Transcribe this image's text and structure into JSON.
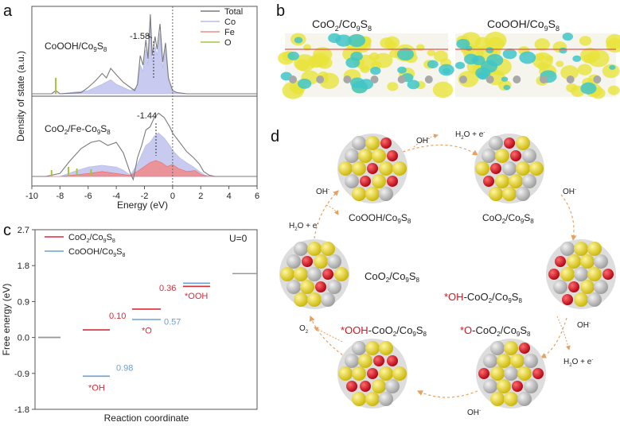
{
  "panel_labels": {
    "a": "a",
    "b": "b",
    "c": "c",
    "d": "d"
  },
  "colors": {
    "total": "#7a7a7a",
    "co": "#b9bde8",
    "fe": "#f08a8a",
    "o": "#a6c33c",
    "dos_fill": "#c8cbef",
    "red_series": "#d92b3a",
    "blue_series": "#6aa0d4",
    "yellow_atom": "#e6d21a",
    "grey_atom": "#b9b9b9",
    "red_atom": "#d3141e",
    "arrow": "#e8a060"
  },
  "chart_data": [
    {
      "type": "line",
      "panel": "a",
      "ylabel": "Density of state (a.u.)",
      "xlabel": "Energy (eV)",
      "xlim": [
        -10,
        6
      ],
      "xticks": [
        "-10",
        "-8",
        "-6",
        "-4",
        "-2",
        "0",
        "2",
        "4",
        "6"
      ],
      "legend": [
        "Total",
        "Co",
        "Fe",
        "O"
      ],
      "top_label": "CoOOH/Co9S8",
      "bottom_label": "CoO2/Fe-Co9S8",
      "top_center": "-1.58",
      "bottom_center": "-1.44",
      "top_total": [
        [
          -10,
          0
        ],
        [
          -8.6,
          0
        ],
        [
          -8.3,
          0.05
        ],
        [
          -8,
          0
        ],
        [
          -6.5,
          0.02
        ],
        [
          -6,
          0.1
        ],
        [
          -5.5,
          0.2
        ],
        [
          -5,
          0.32
        ],
        [
          -4.7,
          0.25
        ],
        [
          -4.4,
          0.4
        ],
        [
          -4,
          0.3
        ],
        [
          -3.5,
          0.18
        ],
        [
          -3,
          0.1
        ],
        [
          -2.7,
          0.05
        ],
        [
          -2.5,
          0.15
        ],
        [
          -2.3,
          0.6
        ],
        [
          -2.1,
          0.45
        ],
        [
          -1.9,
          0.85
        ],
        [
          -1.75,
          0.55
        ],
        [
          -1.58,
          1.25
        ],
        [
          -1.45,
          0.6
        ],
        [
          -1.25,
          0.9
        ],
        [
          -1.1,
          0.7
        ],
        [
          -0.9,
          1.1
        ],
        [
          -0.7,
          0.5
        ],
        [
          -0.5,
          0.8
        ],
        [
          -0.3,
          0.25
        ],
        [
          0,
          0.05
        ],
        [
          0.3,
          0.02
        ],
        [
          1,
          0
        ],
        [
          6,
          0
        ]
      ],
      "top_co": [
        [
          -10,
          0
        ],
        [
          -8,
          0
        ],
        [
          -6,
          0.05
        ],
        [
          -5,
          0.15
        ],
        [
          -4.4,
          0.22
        ],
        [
          -4,
          0.15
        ],
        [
          -3,
          0.05
        ],
        [
          -2.5,
          0.1
        ],
        [
          -2.3,
          0.45
        ],
        [
          -2.1,
          0.35
        ],
        [
          -1.9,
          0.7
        ],
        [
          -1.75,
          0.45
        ],
        [
          -1.58,
          1.1
        ],
        [
          -1.45,
          0.5
        ],
        [
          -1.25,
          0.75
        ],
        [
          -1.1,
          0.6
        ],
        [
          -0.9,
          0.95
        ],
        [
          -0.7,
          0.4
        ],
        [
          -0.5,
          0.7
        ],
        [
          -0.3,
          0.2
        ],
        [
          0,
          0.03
        ],
        [
          1,
          0
        ],
        [
          6,
          0
        ]
      ],
      "bottom_total": [
        [
          -10,
          0
        ],
        [
          -9,
          0
        ],
        [
          -8,
          0.05
        ],
        [
          -7.3,
          0.25
        ],
        [
          -6.5,
          0.45
        ],
        [
          -5.8,
          0.55
        ],
        [
          -5.2,
          0.58
        ],
        [
          -4.6,
          0.5
        ],
        [
          -4,
          0.55
        ],
        [
          -3.5,
          0.38
        ],
        [
          -3,
          0.05
        ],
        [
          -2.8,
          -0.05
        ],
        [
          -2.5,
          0.3
        ],
        [
          -2.2,
          0.5
        ],
        [
          -1.9,
          0.75
        ],
        [
          -1.6,
          0.8
        ],
        [
          -1.3,
          0.95
        ],
        [
          -1,
          1.02
        ],
        [
          -0.6,
          0.95
        ],
        [
          -0.2,
          0.8
        ],
        [
          0,
          0.7
        ],
        [
          0.5,
          0.55
        ],
        [
          1,
          0.4
        ],
        [
          1.5,
          0.3
        ],
        [
          1.9,
          0.2
        ],
        [
          2.2,
          0.08
        ],
        [
          2.6,
          0.02
        ],
        [
          3,
          0
        ],
        [
          6,
          0
        ]
      ],
      "bottom_co": [
        [
          -10,
          0
        ],
        [
          -8,
          0
        ],
        [
          -7,
          0.08
        ],
        [
          -6,
          0.15
        ],
        [
          -5,
          0.18
        ],
        [
          -4,
          0.15
        ],
        [
          -3.5,
          0.1
        ],
        [
          -3,
          0.02
        ],
        [
          -2.5,
          0.2
        ],
        [
          -2.2,
          0.35
        ],
        [
          -1.9,
          0.5
        ],
        [
          -1.6,
          0.55
        ],
        [
          -1.3,
          0.65
        ],
        [
          -1,
          0.7
        ],
        [
          -0.6,
          0.62
        ],
        [
          -0.2,
          0.5
        ],
        [
          0,
          0.42
        ],
        [
          0.5,
          0.3
        ],
        [
          1,
          0.22
        ],
        [
          1.5,
          0.15
        ],
        [
          1.9,
          0.08
        ],
        [
          2.3,
          0.02
        ],
        [
          3,
          0
        ],
        [
          6,
          0
        ]
      ],
      "bottom_fe": [
        [
          -10,
          0
        ],
        [
          -8,
          0
        ],
        [
          -6,
          0.03
        ],
        [
          -5,
          0.05
        ],
        [
          -4,
          0.03
        ],
        [
          -3,
          0.01
        ],
        [
          -2.4,
          0.06
        ],
        [
          -2,
          0.1
        ],
        [
          -1.6,
          0.14
        ],
        [
          -1.2,
          0.16
        ],
        [
          -0.8,
          0.14
        ],
        [
          -0.4,
          0.1
        ],
        [
          0,
          0.12
        ],
        [
          0.4,
          0.08
        ],
        [
          1,
          0.05
        ],
        [
          1.6,
          0.06
        ],
        [
          2,
          0.02
        ],
        [
          2.5,
          0
        ],
        [
          6,
          0
        ]
      ]
    },
    {
      "type": "line",
      "panel": "c",
      "ylabel": "Free energy (eV)",
      "xlabel": "Reaction coordinate",
      "ylim": [
        -1.8,
        2.7
      ],
      "yticks": [
        "2.7",
        "1.8",
        "0.9",
        "0.0",
        "-0.9",
        "-1.8"
      ],
      "annotation": "U=0",
      "series": [
        {
          "name": "CoO2/Co9S8",
          "levels": [
            0.0,
            0.19,
            0.71,
            1.28,
            1.6
          ],
          "step_labels": [
            "0.10",
            "0.36"
          ]
        },
        {
          "name": "CoOOH/Co9S8",
          "levels": [
            0.0,
            -0.97,
            0.45,
            1.36,
            1.6
          ],
          "step_labels": [
            "0.98",
            "0.57"
          ]
        }
      ],
      "intermediate_labels": [
        "*OH",
        "*O",
        "*OOH"
      ]
    }
  ],
  "panel_b": {
    "left_title": "CoO2/Co9S8",
    "right_title": "CoOOH/Co9S8"
  },
  "panel_d": {
    "labels": {
      "coooh": "CoOOH/Co9S8",
      "coo2_tr": "CoO2/Co9S8",
      "coo2_mid": "CoO2/Co9S8",
      "oh_coo2_prefix": "*OH",
      "oh_coo2_rest": "-CoO2/Co9S8",
      "o_coo2_prefix": "*O",
      "o_coo2_rest": "-CoO2/Co9S8",
      "ooh_coo2_prefix": "*OOH",
      "ooh_coo2_rest": "-CoO2/Co9S8"
    },
    "species": {
      "oh_top": "OH-",
      "h2o_e_top": "H2O + e-",
      "oh_left": "OH-",
      "h2o_e_left": "H2O + e-",
      "oh_right": "OH-",
      "oh_mid_right": "OH-",
      "h2o_e_right": "H2O + e-",
      "oh_bottom": "OH-",
      "o2": "O2"
    }
  }
}
